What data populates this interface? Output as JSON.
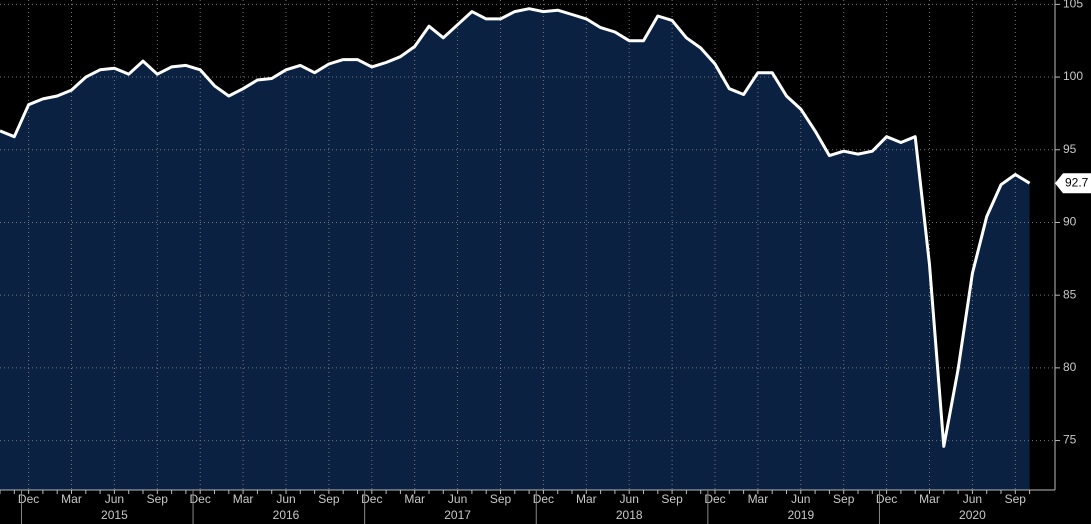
{
  "chart_data": {
    "type": "area",
    "x": [
      "2014-10",
      "2014-11",
      "2014-12",
      "2015-01",
      "2015-02",
      "2015-03",
      "2015-04",
      "2015-05",
      "2015-06",
      "2015-07",
      "2015-08",
      "2015-09",
      "2015-10",
      "2015-11",
      "2015-12",
      "2016-01",
      "2016-02",
      "2016-03",
      "2016-04",
      "2016-05",
      "2016-06",
      "2016-07",
      "2016-08",
      "2016-09",
      "2016-10",
      "2016-11",
      "2016-12",
      "2017-01",
      "2017-02",
      "2017-03",
      "2017-04",
      "2017-05",
      "2017-06",
      "2017-07",
      "2017-08",
      "2017-09",
      "2017-10",
      "2017-11",
      "2017-12",
      "2018-01",
      "2018-02",
      "2018-03",
      "2018-04",
      "2018-05",
      "2018-06",
      "2018-07",
      "2018-08",
      "2018-09",
      "2018-10",
      "2018-11",
      "2018-12",
      "2019-01",
      "2019-02",
      "2019-03",
      "2019-04",
      "2019-05",
      "2019-06",
      "2019-07",
      "2019-08",
      "2019-09",
      "2019-10",
      "2019-11",
      "2019-12",
      "2020-01",
      "2020-02",
      "2020-03",
      "2020-04",
      "2020-05",
      "2020-06",
      "2020-07",
      "2020-08",
      "2020-09",
      "2020-10"
    ],
    "values": [
      96.3,
      95.9,
      98.1,
      98.5,
      98.7,
      99.1,
      100.0,
      100.5,
      100.6,
      100.2,
      101.1,
      100.2,
      100.7,
      100.8,
      100.5,
      99.4,
      98.7,
      99.2,
      99.8,
      99.9,
      100.5,
      100.8,
      100.3,
      100.9,
      101.2,
      101.2,
      100.7,
      101.0,
      101.4,
      102.1,
      103.5,
      102.7,
      103.6,
      104.5,
      104.0,
      104.0,
      104.5,
      104.7,
      104.5,
      104.6,
      104.3,
      104.0,
      103.4,
      103.1,
      102.5,
      102.5,
      104.2,
      103.9,
      102.7,
      102.0,
      100.9,
      99.2,
      98.8,
      100.3,
      100.3,
      98.7,
      97.8,
      96.3,
      94.6,
      94.9,
      94.7,
      94.9,
      95.9,
      95.5,
      95.9,
      87.1,
      74.6,
      79.9,
      86.5,
      90.4,
      92.6,
      93.3,
      92.7
    ],
    "color": "#0a2142",
    "line_color": "#ffffff",
    "ylim": [
      71.6,
      105.3
    ],
    "yticks": [
      75,
      80,
      85,
      90,
      95,
      100,
      105
    ],
    "xticks": [
      {
        "value": "2014-12",
        "label": "Dec"
      },
      {
        "value": "2015-03",
        "label": "Mar"
      },
      {
        "value": "2015-06",
        "label": "Jun"
      },
      {
        "value": "2015-09",
        "label": "Sep"
      },
      {
        "value": "2015-12",
        "label": "Dec"
      },
      {
        "value": "2016-03",
        "label": "Mar"
      },
      {
        "value": "2016-06",
        "label": "Jun"
      },
      {
        "value": "2016-09",
        "label": "Sep"
      },
      {
        "value": "2016-12",
        "label": "Dec"
      },
      {
        "value": "2017-03",
        "label": "Mar"
      },
      {
        "value": "2017-06",
        "label": "Jun"
      },
      {
        "value": "2017-09",
        "label": "Sep"
      },
      {
        "value": "2017-12",
        "label": "Dec"
      },
      {
        "value": "2018-03",
        "label": "Mar"
      },
      {
        "value": "2018-06",
        "label": "Jun"
      },
      {
        "value": "2018-09",
        "label": "Sep"
      },
      {
        "value": "2018-12",
        "label": "Dec"
      },
      {
        "value": "2019-03",
        "label": "Mar"
      },
      {
        "value": "2019-06",
        "label": "Jun"
      },
      {
        "value": "2019-09",
        "label": "Sep"
      },
      {
        "value": "2019-12",
        "label": "Dec"
      },
      {
        "value": "2020-03",
        "label": "Mar"
      },
      {
        "value": "2020-06",
        "label": "Jun"
      },
      {
        "value": "2020-09",
        "label": "Sep"
      }
    ],
    "year_labels": [
      {
        "value": "2015-06",
        "label": "2015"
      },
      {
        "value": "2016-06",
        "label": "2016"
      },
      {
        "value": "2017-06",
        "label": "2017"
      },
      {
        "value": "2018-06",
        "label": "2018"
      },
      {
        "value": "2019-06",
        "label": "2019"
      },
      {
        "value": "2020-06",
        "label": "2020"
      }
    ],
    "grid": true
  }
}
